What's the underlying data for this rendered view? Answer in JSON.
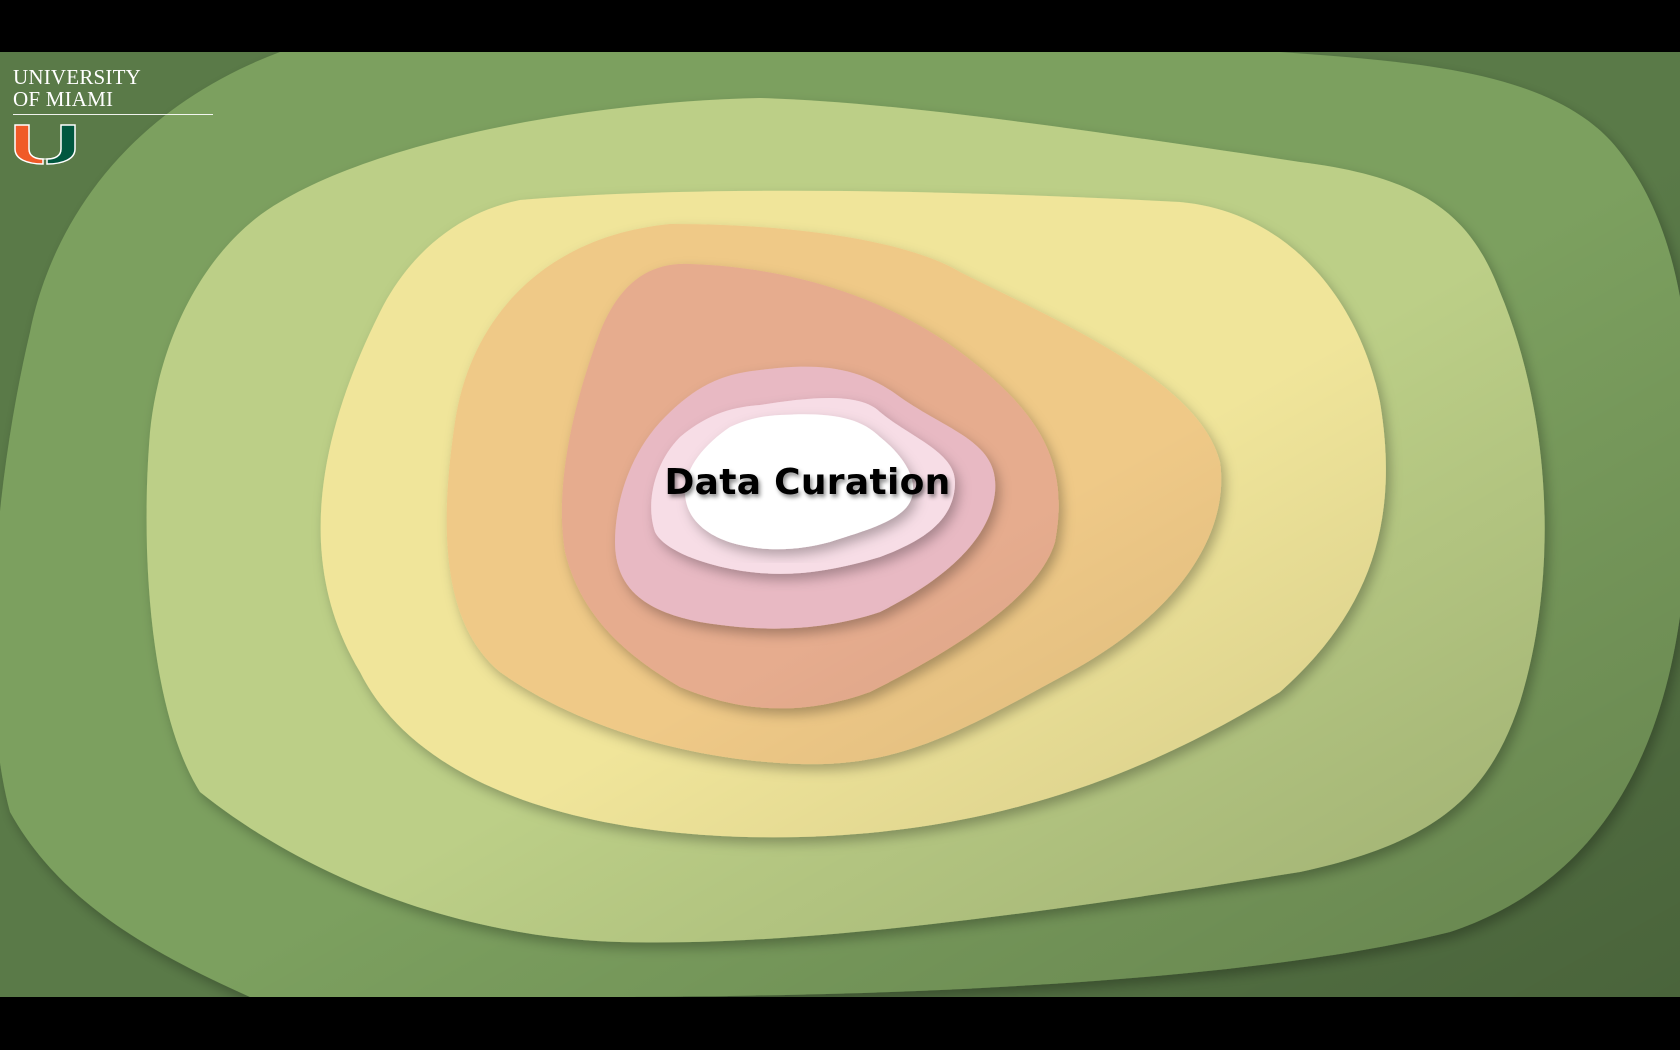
{
  "slide": {
    "title": "Data Curation",
    "colors": {
      "outer": "#7ba05e",
      "ring2": "#bccf87",
      "ring3": "#f0e59a",
      "ring4": "#efc987",
      "ring5": "#e6ac8e",
      "ring6": "#e8b9c3",
      "ring7": "#f7dde6",
      "center": "#ffffff"
    }
  },
  "logo": {
    "line1": "UNIVERSITY",
    "line2": "OF MIAMI",
    "mark_icon": "u-monogram-icon",
    "mark_colors": {
      "left": "#f05a28",
      "right": "#00573f"
    }
  }
}
